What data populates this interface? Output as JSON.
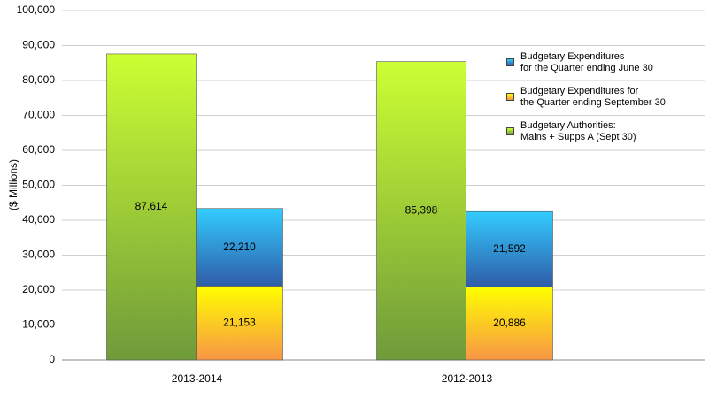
{
  "chart_data": {
    "type": "bar",
    "y_label": "($ Millions)",
    "categories": [
      "2013-2014",
      "2012-2013"
    ],
    "series": [
      {
        "name": "Budgetary Expenditures\nfor the Quarter ending June 30",
        "color": [
          "#33ccff",
          "#2f5ca8"
        ],
        "values": [
          22210,
          21592
        ],
        "value_labels": [
          "22,210",
          "21,592"
        ]
      },
      {
        "name": "Budgetary Expenditures for\nthe Quarter ending September 30",
        "color": [
          "#ffff00",
          "#f79646"
        ],
        "values": [
          21153,
          20886
        ],
        "value_labels": [
          "21,153",
          "20,886"
        ]
      },
      {
        "name": "Budgetary Authorities:\nMains + Supps A (Sept 30)",
        "color": [
          "#ccff33",
          "#6f9a3a"
        ],
        "values": [
          87614,
          85398
        ],
        "value_labels": [
          "87,614",
          "85,398"
        ]
      }
    ],
    "ylim": [
      0,
      100000
    ],
    "yticks": [
      0,
      {
        "value": 10000,
        "label": "10,000"
      },
      {
        "value": 20000,
        "label": "20,000"
      },
      {
        "value": 30000,
        "label": "30,000"
      },
      {
        "value": 40000,
        "label": "40,000"
      },
      {
        "value": 50000,
        "label": "50,000"
      },
      {
        "value": 60000,
        "label": "60,000"
      },
      {
        "value": 70000,
        "label": "70,000"
      },
      {
        "value": 80000,
        "label": "80,000"
      },
      {
        "value": 90000,
        "label": "90,000"
      },
      {
        "value": 100000,
        "label": "100,000"
      }
    ],
    "grid": true
  }
}
